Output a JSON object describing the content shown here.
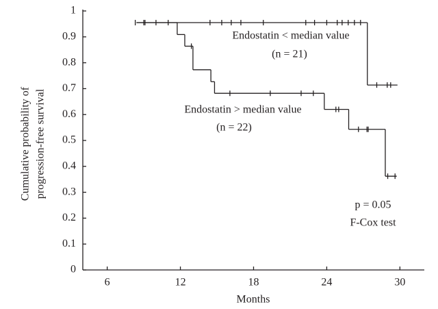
{
  "chart_data": {
    "type": "step",
    "xlabel": "Months",
    "ylabel": [
      "Cumulative probability of",
      "progression-free survival"
    ],
    "xlim": [
      4,
      32
    ],
    "ylim": [
      0,
      1
    ],
    "xticks": [
      6,
      12,
      18,
      24,
      30
    ],
    "yticks": [
      0,
      0.1,
      0.2,
      0.3,
      0.4,
      0.5,
      0.6,
      0.7,
      0.8,
      0.9,
      1
    ],
    "series": [
      {
        "name": "Endostatin < median value",
        "n_label": "(n = 21)",
        "color": "#231f20",
        "x": [
          8.4,
          27.33,
          29.8
        ],
        "values": [
          0.955,
          0.714,
          0.714
        ],
        "censored_x": [
          9.0,
          10.0,
          11.0,
          14.43,
          15.39,
          16.17,
          16.96,
          18.8,
          22.28,
          23.0,
          24.0,
          24.86,
          25.26,
          25.76,
          26.27,
          26.77,
          28.1,
          28.96,
          29.24
        ],
        "censored_values": [
          0.955,
          0.955,
          0.955,
          0.955,
          0.955,
          0.955,
          0.955,
          0.955,
          0.955,
          0.955,
          0.955,
          0.955,
          0.955,
          0.955,
          0.955,
          0.955,
          0.714,
          0.714,
          0.714
        ]
      },
      {
        "name": "Endostatin > median value",
        "n_label": "(n = 22)",
        "color": "#231f20",
        "x": [
          8.4,
          11.74,
          12.36,
          13.03,
          14.5,
          14.8,
          23.8,
          25.8,
          28.8,
          29.74
        ],
        "values": [
          0.955,
          0.909,
          0.864,
          0.773,
          0.727,
          0.682,
          0.62,
          0.543,
          0.362,
          0.362
        ],
        "censored_x": [
          8.3,
          9.1,
          12.9,
          16.06,
          19.37,
          21.9,
          22.9,
          24.75,
          24.98,
          26.6,
          27.3,
          27.4,
          29.0,
          29.6
        ],
        "censored_values": [
          0.955,
          0.955,
          0.864,
          0.682,
          0.682,
          0.682,
          0.682,
          0.62,
          0.62,
          0.543,
          0.543,
          0.543,
          0.362,
          0.362
        ]
      }
    ],
    "annotations": [
      "p = 0.05",
      "F-Cox test"
    ]
  }
}
